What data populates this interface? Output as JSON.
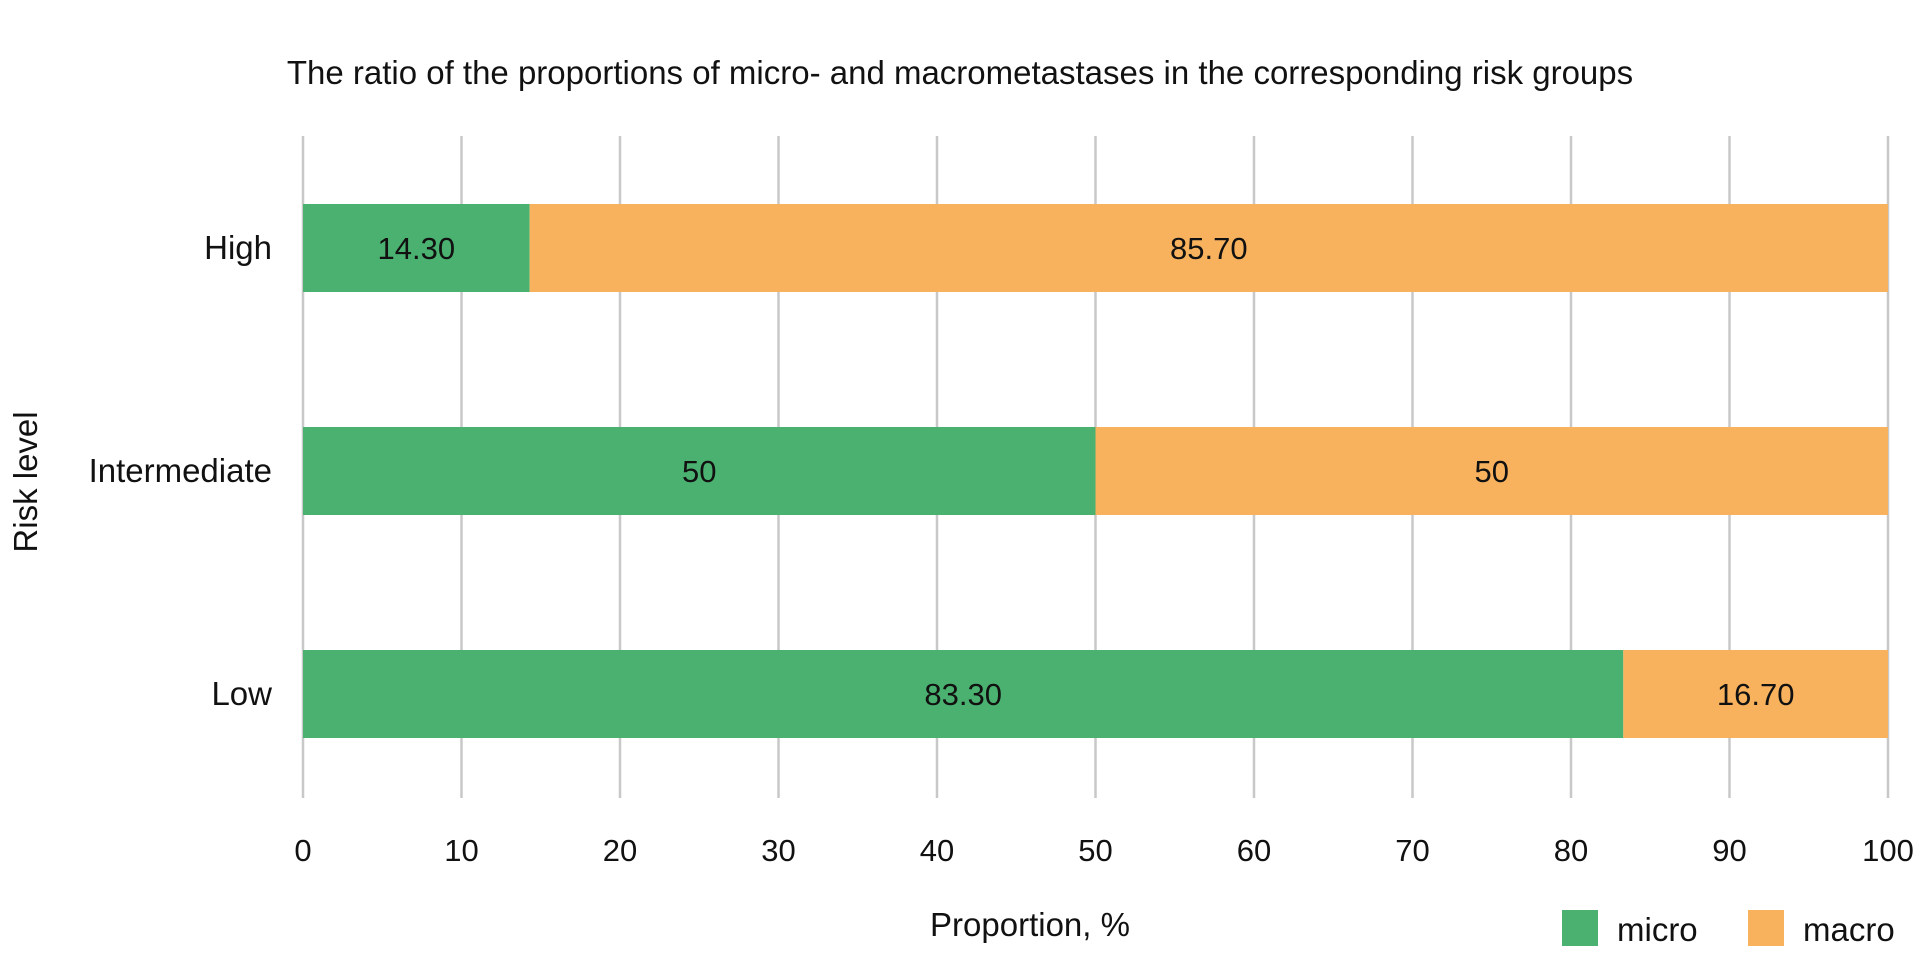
{
  "chart_data": {
    "type": "bar",
    "orientation": "horizontal",
    "stacked": true,
    "title": "The ratio of the proportions of micro- and macrometastases in the corresponding risk groups",
    "xlabel": "Proportion, %",
    "ylabel": "Risk level",
    "categories": [
      "High",
      "Intermediate",
      "Low"
    ],
    "series": [
      {
        "name": "micro",
        "color": "#4ab170",
        "values": [
          14.3,
          50,
          83.3
        ],
        "labels": [
          "14.30",
          "50",
          "83.30"
        ]
      },
      {
        "name": "macro",
        "color": "#f8b25e",
        "values": [
          85.7,
          50,
          16.7
        ],
        "labels": [
          "85.70",
          "50",
          "16.70"
        ]
      }
    ],
    "xlim": [
      0,
      100
    ],
    "xticks": [
      "0",
      "10",
      "20",
      "30",
      "40",
      "50",
      "60",
      "70",
      "80",
      "90",
      "100"
    ],
    "grid": true,
    "legend": "bottom-right"
  }
}
